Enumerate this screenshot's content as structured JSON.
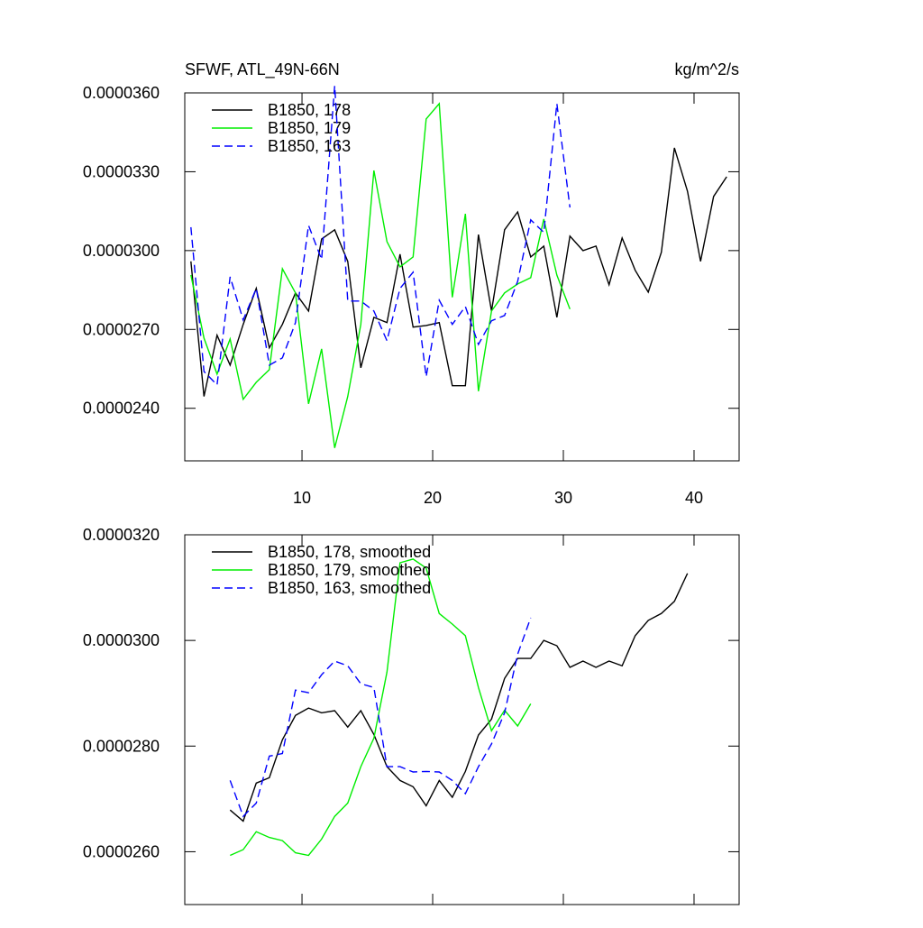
{
  "chart_data": [
    {
      "type": "line",
      "title": "SFWF, ATL_49N-66N",
      "subtitle": "kg/m^2/s",
      "xlim": [
        1.03,
        43.45
      ],
      "xticks": [
        10,
        20,
        30,
        40
      ],
      "xticklabels": true,
      "ylim": [
        2.2e-05,
        3.6e-05
      ],
      "yticks": [
        {
          "value": 2.4e-05,
          "label": "0.0000240"
        },
        {
          "value": 2.7e-05,
          "label": "0.0000270"
        },
        {
          "value": 3e-05,
          "label": "0.0000300"
        },
        {
          "value": 3.3e-05,
          "label": "0.0000330"
        },
        {
          "value": 3.6e-05,
          "label": "0.0000360"
        }
      ],
      "series": [
        {
          "name": "B1850, 178",
          "color": "#000000",
          "dash": false,
          "x": [
            1.5,
            2.5,
            3.5,
            4.5,
            5.5,
            6.5,
            7.5,
            8.5,
            9.5,
            10.5,
            11.5,
            12.5,
            13.5,
            14.5,
            15.5,
            16.5,
            17.5,
            18.5,
            19.5,
            20.5,
            21.5,
            22.5,
            23.5,
            24.5,
            25.5,
            26.5,
            27.5,
            28.5,
            29.5,
            30.5,
            31.5,
            32.5,
            33.5,
            34.5,
            35.5,
            36.5,
            37.5,
            38.5,
            39.5,
            40.5,
            41.5,
            42.5
          ],
          "values": [
            2.959e-05,
            2.445e-05,
            2.678e-05,
            2.564e-05,
            2.719e-05,
            2.856e-05,
            2.63e-05,
            2.719e-05,
            2.839e-05,
            2.77e-05,
            3.044e-05,
            3.079e-05,
            2.959e-05,
            2.554e-05,
            2.746e-05,
            2.726e-05,
            2.986e-05,
            2.709e-05,
            2.715e-05,
            2.726e-05,
            2.486e-05,
            2.486e-05,
            3.061e-05,
            2.77e-05,
            3.079e-05,
            3.147e-05,
            2.976e-05,
            3.017e-05,
            2.746e-05,
            3.055e-05,
            3e-05,
            3.017e-05,
            2.87e-05,
            3.048e-05,
            2.925e-05,
            2.842e-05,
            2.993e-05,
            3.391e-05,
            3.226e-05,
            2.959e-05,
            3.206e-05,
            3.281e-05
          ]
        },
        {
          "name": "B1850, 179",
          "color": "#00ee00",
          "dash": false,
          "x": [
            1.5,
            2.5,
            3.5,
            4.5,
            5.5,
            6.5,
            7.5,
            8.5,
            9.5,
            10.5,
            11.5,
            12.5,
            13.5,
            14.5,
            15.5,
            16.5,
            17.5,
            18.5,
            19.5,
            20.5,
            21.5,
            22.5,
            23.5,
            24.5,
            25.5,
            26.5,
            27.5,
            28.5,
            29.5,
            30.5
          ],
          "values": [
            2.907e-05,
            2.667e-05,
            2.53e-05,
            2.664e-05,
            2.434e-05,
            2.499e-05,
            2.547e-05,
            2.931e-05,
            2.839e-05,
            2.417e-05,
            2.626e-05,
            2.249e-05,
            2.445e-05,
            2.719e-05,
            3.305e-05,
            3.034e-05,
            2.938e-05,
            2.976e-05,
            3.501e-05,
            3.559e-05,
            2.822e-05,
            3.14e-05,
            2.465e-05,
            2.77e-05,
            2.839e-05,
            2.873e-05,
            2.897e-05,
            3.12e-05,
            2.907e-05,
            2.777e-05
          ]
        },
        {
          "name": "B1850, 163",
          "color": "#0000ff",
          "dash": true,
          "x": [
            1.5,
            2.5,
            3.5,
            4.5,
            5.5,
            6.5,
            7.5,
            8.5,
            9.5,
            10.5,
            11.5,
            12.5,
            13.5,
            14.5,
            15.5,
            16.5,
            17.5,
            18.5,
            19.5,
            20.5,
            21.5,
            22.5,
            23.5,
            24.5,
            25.5,
            26.5,
            27.5,
            28.5,
            29.5,
            30.5
          ],
          "values": [
            3.089e-05,
            2.54e-05,
            2.489e-05,
            2.9e-05,
            2.736e-05,
            2.856e-05,
            2.564e-05,
            2.592e-05,
            2.726e-05,
            3.096e-05,
            2.966e-05,
            3.627e-05,
            2.808e-05,
            2.808e-05,
            2.77e-05,
            2.657e-05,
            2.856e-05,
            2.918e-05,
            2.52e-05,
            2.811e-05,
            2.719e-05,
            2.787e-05,
            2.643e-05,
            2.733e-05,
            2.753e-05,
            2.883e-05,
            3.117e-05,
            3.069e-05,
            3.559e-05,
            3.164e-05
          ]
        }
      ]
    },
    {
      "type": "line",
      "xlim": [
        1.03,
        43.45
      ],
      "xticks": [
        10,
        20,
        30,
        40
      ],
      "xticklabels": false,
      "ylim": [
        2.5e-05,
        3.2e-05
      ],
      "yticks": [
        {
          "value": 2.6e-05,
          "label": "0.0000260"
        },
        {
          "value": 2.8e-05,
          "label": "0.0000280"
        },
        {
          "value": 3e-05,
          "label": "0.0000300"
        },
        {
          "value": 3.2e-05,
          "label": "0.0000320"
        }
      ],
      "series": [
        {
          "name": "B1850, 178, smoothed",
          "color": "#000000",
          "dash": false,
          "x": [
            4.5,
            5.5,
            6.5,
            7.5,
            8.5,
            9.5,
            10.5,
            11.5,
            12.5,
            13.5,
            14.5,
            15.5,
            16.5,
            17.5,
            18.5,
            19.5,
            20.5,
            21.5,
            22.5,
            23.5,
            24.5,
            25.5,
            26.5,
            27.5,
            28.5,
            29.5,
            30.5,
            31.5,
            32.5,
            33.5,
            34.5,
            35.5,
            36.5,
            37.5,
            38.5,
            39.5
          ],
          "values": [
            2.679e-05,
            2.658e-05,
            2.73e-05,
            2.74e-05,
            2.812e-05,
            2.858e-05,
            2.872e-05,
            2.863e-05,
            2.867e-05,
            2.836e-05,
            2.867e-05,
            2.822e-05,
            2.761e-05,
            2.735e-05,
            2.723e-05,
            2.687e-05,
            2.735e-05,
            2.703e-05,
            2.752e-05,
            2.821e-05,
            2.851e-05,
            2.928e-05,
            2.966e-05,
            2.966e-05,
            3e-05,
            2.99e-05,
            2.949e-05,
            2.961e-05,
            2.949e-05,
            2.961e-05,
            2.952e-05,
            3.009e-05,
            3.038e-05,
            3.051e-05,
            3.074e-05,
            3.127e-05
          ]
        },
        {
          "name": "B1850, 179, smoothed",
          "color": "#00ee00",
          "dash": false,
          "x": [
            4.5,
            5.5,
            6.5,
            7.5,
            8.5,
            9.5,
            10.5,
            11.5,
            12.5,
            13.5,
            14.5,
            15.5,
            16.5,
            17.5,
            18.5,
            19.5,
            20.5,
            21.5,
            22.5,
            23.5,
            24.5,
            25.5,
            26.5,
            27.5
          ],
          "values": [
            2.593e-05,
            2.604e-05,
            2.638e-05,
            2.627e-05,
            2.621e-05,
            2.598e-05,
            2.593e-05,
            2.624e-05,
            2.667e-05,
            2.692e-05,
            2.761e-05,
            2.815e-05,
            2.94e-05,
            3.147e-05,
            3.154e-05,
            3.137e-05,
            3.051e-05,
            3.031e-05,
            3.009e-05,
            2.911e-05,
            2.829e-05,
            2.868e-05,
            2.838e-05,
            2.88e-05
          ]
        },
        {
          "name": "B1850, 163, smoothed",
          "color": "#0000ff",
          "dash": true,
          "x": [
            4.5,
            5.5,
            6.5,
            7.5,
            8.5,
            9.5,
            10.5,
            11.5,
            12.5,
            13.5,
            14.5,
            15.5,
            16.5,
            17.5,
            18.5,
            19.5,
            20.5,
            21.5,
            22.5,
            23.5,
            24.5,
            25.5,
            26.5,
            27.5
          ],
          "values": [
            2.735e-05,
            2.667e-05,
            2.692e-05,
            2.781e-05,
            2.786e-05,
            2.906e-05,
            2.901e-05,
            2.935e-05,
            2.961e-05,
            2.952e-05,
            2.918e-05,
            2.911e-05,
            2.761e-05,
            2.761e-05,
            2.751e-05,
            2.752e-05,
            2.751e-05,
            2.735e-05,
            2.71e-05,
            2.761e-05,
            2.804e-05,
            2.863e-05,
            2.974e-05,
            3.043e-05
          ]
        }
      ]
    }
  ]
}
